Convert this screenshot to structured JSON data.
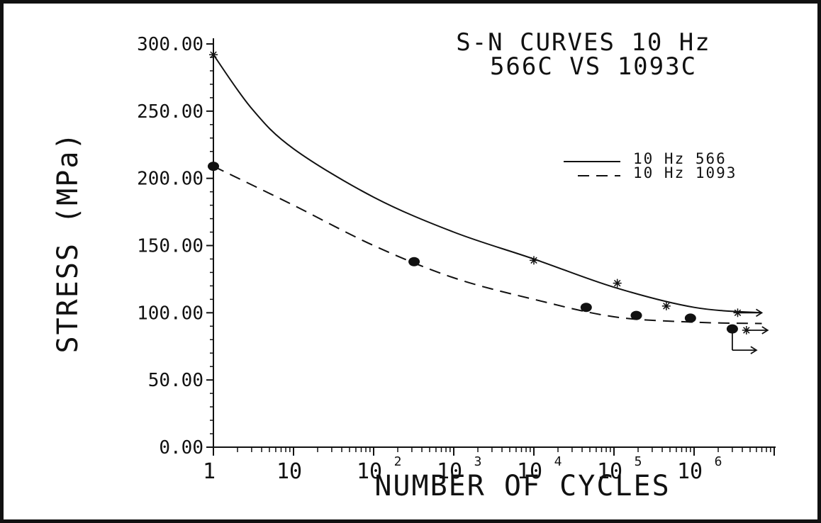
{
  "chart_data": {
    "type": "scatter",
    "title_lines": [
      "S-N CURVES 10 Hz",
      "566C VS 1093C"
    ],
    "xlabel": "NUMBER OF CYCLES",
    "ylabel": "STRESS (MPa)",
    "x_scale": "log",
    "xlim": [
      1,
      10000000
    ],
    "ylim": [
      0,
      300
    ],
    "y_ticks": [
      "0.00",
      "50.00",
      "100.00",
      "150.00",
      "200.00",
      "250.00",
      "300.00"
    ],
    "x_tick_labels": [
      {
        "base": "1",
        "exp": ""
      },
      {
        "base": "10",
        "exp": ""
      },
      {
        "base": "10",
        "exp": "2"
      },
      {
        "base": "10",
        "exp": "3"
      },
      {
        "base": "10",
        "exp": "4"
      },
      {
        "base": "10",
        "exp": "5"
      },
      {
        "base": "10",
        "exp": "6"
      }
    ],
    "legend_position": "top-right",
    "series": [
      {
        "name": "10 Hz 566",
        "line_style": "solid",
        "marker": "asterisk",
        "curve": [
          {
            "x": 1,
            "y": 292
          },
          {
            "x": 3,
            "y": 252
          },
          {
            "x": 10,
            "y": 222
          },
          {
            "x": 100,
            "y": 186
          },
          {
            "x": 1000,
            "y": 160
          },
          {
            "x": 10000,
            "y": 140
          },
          {
            "x": 100000,
            "y": 119
          },
          {
            "x": 1000000,
            "y": 104
          },
          {
            "x": 7000000,
            "y": 100
          }
        ],
        "points": [
          {
            "x": 1,
            "y": 292
          },
          {
            "x": 10000,
            "y": 139
          },
          {
            "x": 110000,
            "y": 122
          },
          {
            "x": 450000,
            "y": 105
          },
          {
            "x": 3500000,
            "y": 100
          },
          {
            "x": 4500000,
            "y": 87
          }
        ]
      },
      {
        "name": "10 Hz 1093",
        "line_style": "dashed",
        "marker": "filled-circle",
        "curve": [
          {
            "x": 1,
            "y": 209
          },
          {
            "x": 10,
            "y": 180
          },
          {
            "x": 100,
            "y": 150
          },
          {
            "x": 1000,
            "y": 126
          },
          {
            "x": 10000,
            "y": 110
          },
          {
            "x": 100000,
            "y": 97
          },
          {
            "x": 1000000,
            "y": 93
          },
          {
            "x": 7000000,
            "y": 92
          }
        ],
        "points": [
          {
            "x": 1,
            "y": 209
          },
          {
            "x": 320,
            "y": 138
          },
          {
            "x": 45000,
            "y": 104
          },
          {
            "x": 190000,
            "y": 98
          },
          {
            "x": 900000,
            "y": 96
          },
          {
            "x": 3000000,
            "y": 88
          }
        ]
      }
    ],
    "runout_arrows": [
      {
        "x": 3500000,
        "y": 100
      },
      {
        "x": 4500000,
        "y": 87
      },
      {
        "x": 3000000,
        "y": 88
      }
    ]
  }
}
